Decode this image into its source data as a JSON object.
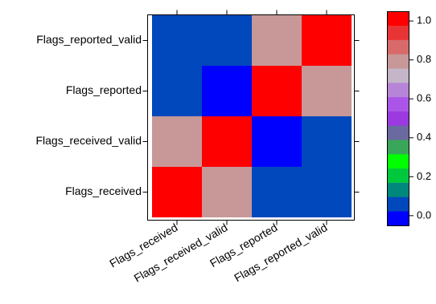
{
  "chart_data": {
    "type": "heatmap",
    "title": "",
    "xlabel": "",
    "ylabel": "",
    "x_categories": [
      "Flags_received",
      "Flags_received_valid",
      "Flags_reported",
      "Flags_reported_valid"
    ],
    "y_categories": [
      "Flags_received",
      "Flags_received_valid",
      "Flags_reported",
      "Flags_reported_valid"
    ],
    "matrix": [
      [
        1.0,
        0.78,
        0.05,
        0.05
      ],
      [
        0.78,
        1.0,
        0.0,
        0.05
      ],
      [
        0.05,
        0.0,
        1.0,
        0.83
      ],
      [
        0.05,
        0.05,
        0.83,
        1.0
      ]
    ],
    "colorbar": {
      "range": [
        -0.05,
        1.05
      ],
      "ticks": [
        "0.0",
        "0.2",
        "0.4",
        "0.6",
        "0.8",
        "1.0"
      ],
      "tick_values": [
        0.0,
        0.2,
        0.4,
        0.6,
        0.8,
        1.0
      ],
      "colors": [
        "#0000ff",
        "#0048bc",
        "#00887c",
        "#00c83c",
        "#00ff00",
        "#3aa65a",
        "#6a6aa0",
        "#9a3ae0",
        "#aa55e8",
        "#b785d8",
        "#c4b5c8",
        "#c89898",
        "#d86a6a",
        "#e83434",
        "#ff0000"
      ]
    },
    "grid": false,
    "legend_placement": "right"
  }
}
